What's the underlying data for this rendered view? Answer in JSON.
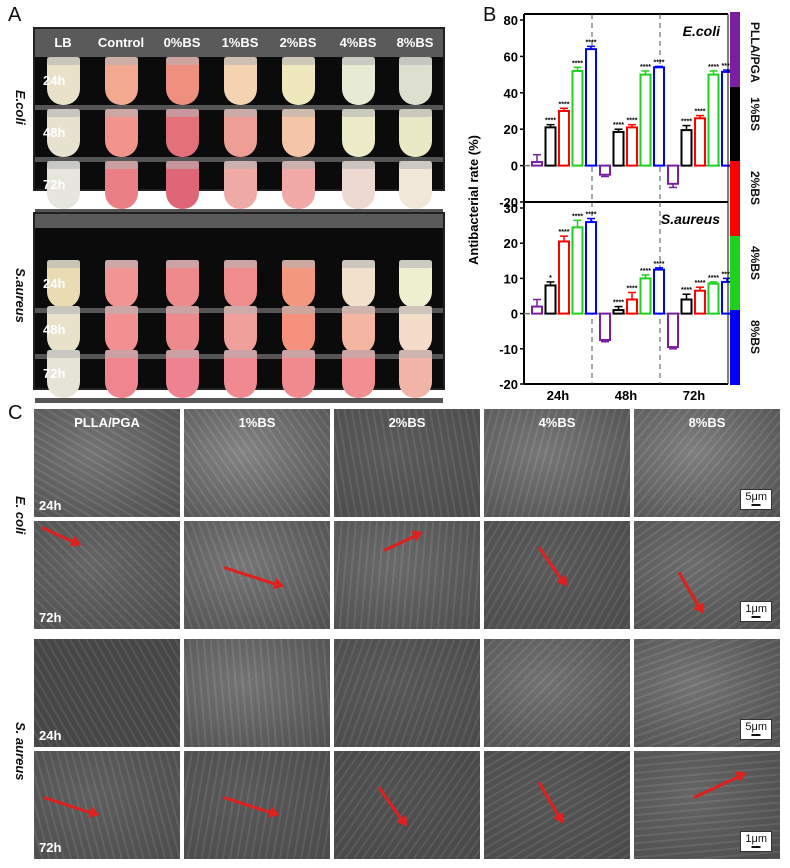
{
  "panel_labels": {
    "a": "A",
    "b": "B",
    "c": "C"
  },
  "panel_a": {
    "columns": [
      "LB",
      "Control",
      "0%BS",
      "1%BS",
      "2%BS",
      "4%BS",
      "8%BS"
    ],
    "groups": [
      {
        "organism": "E.coli",
        "rows": [
          {
            "time": "24h",
            "colors": [
              "#e9e2c8",
              "#f2a98f",
              "#ef8f7e",
              "#f3d3b0",
              "#efe8bd",
              "#e8ebd4",
              "#dde0cf"
            ]
          },
          {
            "time": "48h",
            "colors": [
              "#e6e2cf",
              "#f2938c",
              "#e4707a",
              "#ee9e95",
              "#f4c5a6",
              "#ebebc8",
              "#eae9c6"
            ]
          },
          {
            "time": "72h",
            "colors": [
              "#e6e6dc",
              "#ea7f86",
              "#de6676",
              "#efaaa6",
              "#f1a9a8",
              "#eed9d0",
              "#f1e7d9"
            ]
          }
        ]
      },
      {
        "organism": "S.aureus",
        "rows": [
          {
            "time": "24h",
            "colors": [
              "#eadbb2",
              "#f19592",
              "#ef8a8c",
              "#ee8d8b",
              "#f3987f",
              "#f0e0cc",
              "#eef1cf"
            ]
          },
          {
            "time": "48h",
            "colors": [
              "#e9e2ca",
              "#f39192",
              "#ee8a8d",
              "#f0a09a",
              "#f5917c",
              "#f4b5a3",
              "#f3dcc8"
            ]
          },
          {
            "time": "72h",
            "colors": [
              "#e6e4d6",
              "#f08590",
              "#ee8290",
              "#f08a90",
              "#f08a8e",
              "#f18f92",
              "#f2b4a8"
            ]
          }
        ]
      }
    ]
  },
  "chart_data": {
    "type": "bar",
    "ylabel": "Antibacterial rate (%)",
    "xlabel": "",
    "categories": [
      "24h",
      "48h",
      "72h"
    ],
    "legend": [
      {
        "name": "PLLA/PGA",
        "color": "#7b1fa2"
      },
      {
        "name": "1%BS",
        "color": "#000000"
      },
      {
        "name": "2%BS",
        "color": "#ff0000"
      },
      {
        "name": "4%BS",
        "color": "#1fd11f"
      },
      {
        "name": "8%BS",
        "color": "#0000ff"
      }
    ],
    "legend_position": "right (color strip)",
    "subplots": [
      {
        "title": "E.coli",
        "ylim": [
          -20,
          80
        ],
        "yticks": [
          -20,
          0,
          20,
          40,
          60,
          80
        ],
        "series": [
          {
            "name": "PLLA/PGA",
            "values": [
              2,
              -5,
              -10
            ],
            "errors": [
              4,
              1,
              2
            ],
            "sig": [
              "",
              "",
              ""
            ]
          },
          {
            "name": "1%BS",
            "values": [
              21,
              18.5,
              19.5
            ],
            "errors": [
              1.5,
              1.5,
              2.5
            ],
            "sig": [
              "****",
              "****",
              "****"
            ]
          },
          {
            "name": "2%BS",
            "values": [
              30,
              21,
              26
            ],
            "errors": [
              1.5,
              1.5,
              1.5
            ],
            "sig": [
              "****",
              "****",
              "****"
            ]
          },
          {
            "name": "4%BS",
            "values": [
              52,
              50,
              50
            ],
            "errors": [
              2,
              2,
              2
            ],
            "sig": [
              "****",
              "****",
              "****"
            ]
          },
          {
            "name": "8%BS",
            "values": [
              64,
              54,
              51.5
            ],
            "errors": [
              1.5,
              0.5,
              1
            ],
            "sig": [
              "****",
              "****",
              "****"
            ]
          }
        ]
      },
      {
        "title": "S.aureus",
        "ylim": [
          -20,
          30
        ],
        "yticks": [
          -20,
          -10,
          0,
          10,
          20,
          30
        ],
        "series": [
          {
            "name": "PLLA/PGA",
            "values": [
              2,
              -7.5,
              -9.5
            ],
            "errors": [
              2,
              0.5,
              0.5
            ],
            "sig": [
              "",
              "",
              ""
            ]
          },
          {
            "name": "1%BS",
            "values": [
              8,
              1,
              4
            ],
            "errors": [
              1,
              1,
              1.5
            ],
            "sig": [
              "*",
              "****",
              "****"
            ]
          },
          {
            "name": "2%BS",
            "values": [
              20.5,
              4,
              6.5
            ],
            "errors": [
              1.5,
              2,
              1
            ],
            "sig": [
              "****",
              "****",
              "****"
            ]
          },
          {
            "name": "4%BS",
            "values": [
              24.5,
              10,
              8.5
            ],
            "errors": [
              2,
              1,
              0.5
            ],
            "sig": [
              "****",
              "****",
              "****"
            ]
          },
          {
            "name": "8%BS",
            "values": [
              26,
              12.5,
              9
            ],
            "errors": [
              1,
              0.5,
              1
            ],
            "sig": [
              "****",
              "****",
              "****"
            ]
          }
        ]
      }
    ]
  },
  "panel_c": {
    "columns": [
      "PLLA/PGA",
      "1%BS",
      "2%BS",
      "4%BS",
      "8%BS"
    ],
    "organisms": [
      "E. coli",
      "S. aureus"
    ],
    "row_times": [
      "24h",
      "72h"
    ],
    "scale_bars": {
      "low_mag": "5μm",
      "high_mag": "1μm"
    },
    "arrow_color": "#e0201c"
  }
}
